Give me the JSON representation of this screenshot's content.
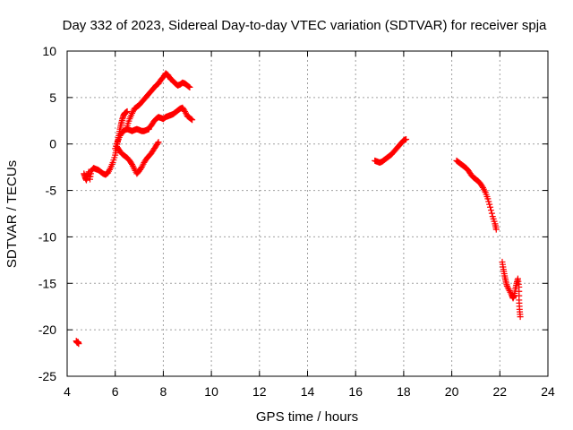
{
  "chart_data": {
    "type": "scatter",
    "title": "Day 332 of 2023, Sidereal Day-to-day VTEC variation (SDTVAR) for receiver spja",
    "xlabel": "GPS time / hours",
    "ylabel": "SDTVAR / TECUs",
    "xlim": [
      4,
      24
    ],
    "ylim": [
      -25,
      10
    ],
    "xticks": [
      4,
      6,
      8,
      10,
      12,
      14,
      16,
      18,
      20,
      22,
      24
    ],
    "yticks": [
      -25,
      -20,
      -15,
      -10,
      -5,
      0,
      5,
      10
    ],
    "grid": true,
    "marker": "plus",
    "color": "#ff0000",
    "series": [
      {
        "segments": [
          [
            [
              4.38,
              -21.2
            ],
            [
              4.42,
              -21.4
            ],
            [
              4.45,
              -21.3
            ],
            [
              4.48,
              -21.5
            ]
          ],
          [
            [
              4.7,
              -3.2
            ],
            [
              4.75,
              -3.6
            ],
            [
              4.8,
              -3.9
            ],
            [
              4.85,
              -3.4
            ],
            [
              4.9,
              -3.0
            ],
            [
              4.95,
              -3.8
            ],
            [
              5.0,
              -2.9
            ],
            [
              5.1,
              -2.6
            ],
            [
              5.2,
              -2.7
            ],
            [
              5.3,
              -2.8
            ],
            [
              5.4,
              -3.0
            ],
            [
              5.5,
              -3.2
            ],
            [
              5.6,
              -3.3
            ],
            [
              5.7,
              -3.1
            ],
            [
              5.8,
              -2.6
            ],
            [
              5.9,
              -2.0
            ],
            [
              6.0,
              -1.2
            ],
            [
              6.05,
              -0.5
            ],
            [
              6.1,
              0.2
            ],
            [
              6.15,
              0.9
            ],
            [
              6.2,
              1.6
            ],
            [
              6.25,
              2.2
            ],
            [
              6.3,
              2.7
            ],
            [
              6.35,
              3.1
            ],
            [
              6.4,
              3.3
            ],
            [
              6.45,
              3.4
            ],
            [
              6.5,
              3.5
            ]
          ],
          [
            [
              6.0,
              -0.5
            ],
            [
              6.1,
              0.3
            ],
            [
              6.2,
              0.9
            ],
            [
              6.3,
              1.3
            ],
            [
              6.4,
              1.5
            ],
            [
              6.5,
              1.6
            ],
            [
              6.6,
              1.5
            ],
            [
              6.7,
              1.4
            ],
            [
              6.8,
              1.5
            ],
            [
              6.9,
              1.6
            ],
            [
              7.0,
              1.5
            ],
            [
              7.1,
              1.4
            ],
            [
              7.2,
              1.4
            ],
            [
              7.3,
              1.5
            ],
            [
              7.4,
              1.6
            ]
          ],
          [
            [
              6.1,
              -0.4
            ],
            [
              6.2,
              -0.8
            ],
            [
              6.3,
              -1.1
            ],
            [
              6.4,
              -1.3
            ],
            [
              6.5,
              -1.5
            ],
            [
              6.6,
              -1.8
            ],
            [
              6.7,
              -2.2
            ],
            [
              6.8,
              -2.7
            ],
            [
              6.9,
              -3.2
            ],
            [
              7.0,
              -2.9
            ],
            [
              7.1,
              -2.5
            ],
            [
              7.2,
              -2.0
            ],
            [
              7.3,
              -1.6
            ],
            [
              7.4,
              -1.3
            ],
            [
              7.5,
              -1.0
            ],
            [
              7.6,
              -0.6
            ],
            [
              7.7,
              -0.2
            ],
            [
              7.8,
              0.2
            ]
          ],
          [
            [
              6.5,
              2.0
            ],
            [
              6.6,
              2.7
            ],
            [
              6.7,
              3.3
            ],
            [
              6.8,
              3.8
            ],
            [
              6.9,
              4.0
            ],
            [
              7.0,
              4.2
            ],
            [
              7.1,
              4.5
            ],
            [
              7.2,
              4.8
            ],
            [
              7.3,
              5.1
            ],
            [
              7.4,
              5.4
            ],
            [
              7.5,
              5.7
            ],
            [
              7.6,
              6.0
            ],
            [
              7.7,
              6.3
            ],
            [
              7.8,
              6.5
            ],
            [
              7.9,
              6.9
            ],
            [
              8.0,
              7.2
            ],
            [
              8.1,
              7.6
            ],
            [
              8.2,
              7.4
            ],
            [
              8.3,
              7.0
            ],
            [
              8.4,
              6.8
            ],
            [
              8.5,
              6.5
            ],
            [
              8.6,
              6.3
            ],
            [
              8.7,
              6.4
            ],
            [
              8.8,
              6.6
            ],
            [
              8.9,
              6.5
            ],
            [
              9.0,
              6.3
            ],
            [
              9.1,
              6.1
            ]
          ],
          [
            [
              7.4,
              1.7
            ],
            [
              7.5,
              2.0
            ],
            [
              7.6,
              2.4
            ],
            [
              7.7,
              2.7
            ],
            [
              7.8,
              2.9
            ],
            [
              7.9,
              2.8
            ],
            [
              8.0,
              2.7
            ],
            [
              8.1,
              2.9
            ],
            [
              8.2,
              3.0
            ],
            [
              8.3,
              3.1
            ],
            [
              8.4,
              3.2
            ],
            [
              8.5,
              3.4
            ],
            [
              8.6,
              3.6
            ],
            [
              8.7,
              3.8
            ],
            [
              8.8,
              3.9
            ],
            [
              8.9,
              3.5
            ],
            [
              9.0,
              3.0
            ],
            [
              9.1,
              2.8
            ],
            [
              9.2,
              2.6
            ]
          ],
          [
            [
              16.8,
              -1.8
            ],
            [
              16.9,
              -1.9
            ],
            [
              17.0,
              -2.0
            ],
            [
              17.1,
              -1.9
            ],
            [
              17.2,
              -1.7
            ],
            [
              17.3,
              -1.5
            ],
            [
              17.4,
              -1.3
            ],
            [
              17.5,
              -1.1
            ],
            [
              17.6,
              -0.8
            ],
            [
              17.7,
              -0.5
            ],
            [
              17.8,
              -0.2
            ],
            [
              17.9,
              0.1
            ],
            [
              18.0,
              0.4
            ],
            [
              18.1,
              0.5
            ]
          ],
          [
            [
              20.2,
              -1.8
            ],
            [
              20.3,
              -2.0
            ],
            [
              20.4,
              -2.2
            ],
            [
              20.5,
              -2.4
            ],
            [
              20.6,
              -2.6
            ],
            [
              20.7,
              -2.9
            ],
            [
              20.8,
              -3.3
            ],
            [
              20.9,
              -3.6
            ],
            [
              21.0,
              -3.8
            ],
            [
              21.1,
              -4.0
            ],
            [
              21.2,
              -4.3
            ],
            [
              21.3,
              -4.7
            ],
            [
              21.4,
              -5.2
            ],
            [
              21.5,
              -5.9
            ],
            [
              21.6,
              -6.8
            ],
            [
              21.7,
              -7.8
            ],
            [
              21.8,
              -8.6
            ],
            [
              21.85,
              -9.2
            ]
          ],
          [
            [
              22.1,
              -12.7
            ],
            [
              22.15,
              -13.5
            ],
            [
              22.2,
              -14.2
            ],
            [
              22.25,
              -14.8
            ],
            [
              22.3,
              -15.3
            ],
            [
              22.4,
              -15.8
            ],
            [
              22.5,
              -16.3
            ],
            [
              22.55,
              -16.6
            ],
            [
              22.6,
              -16.3
            ],
            [
              22.65,
              -15.6
            ],
            [
              22.7,
              -15.0
            ],
            [
              22.75,
              -14.5
            ],
            [
              22.8,
              -15.4
            ],
            [
              22.8,
              -16.8
            ],
            [
              22.82,
              -17.8
            ],
            [
              22.85,
              -18.6
            ]
          ]
        ]
      }
    ]
  }
}
